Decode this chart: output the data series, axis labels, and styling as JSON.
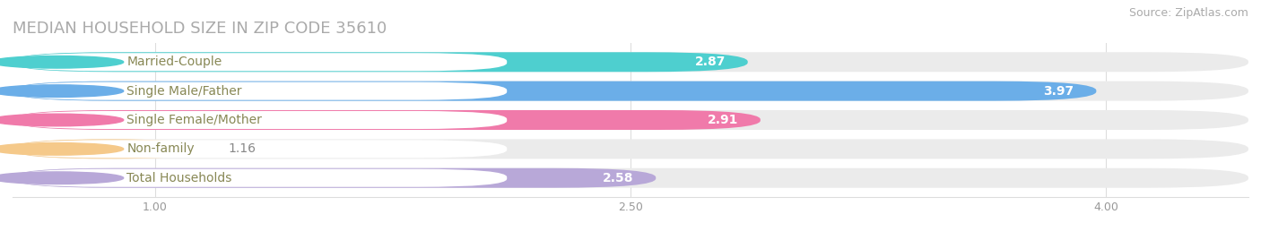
{
  "title": "MEDIAN HOUSEHOLD SIZE IN ZIP CODE 35610",
  "source": "Source: ZipAtlas.com",
  "categories": [
    "Married-Couple",
    "Single Male/Father",
    "Single Female/Mother",
    "Non-family",
    "Total Households"
  ],
  "values": [
    2.87,
    3.97,
    2.91,
    1.16,
    2.58
  ],
  "bar_colors": [
    "#4ecfcf",
    "#6baee8",
    "#f07aaa",
    "#f5c98a",
    "#b8a8d8"
  ],
  "dot_colors": [
    "#4ecfcf",
    "#6baee8",
    "#f07aaa",
    "#f5c98a",
    "#b8a8d8"
  ],
  "bar_bg_color": "#ebebeb",
  "label_text_color": "#888855",
  "xlim_left": 0.55,
  "xlim_right": 4.45,
  "xticks": [
    1.0,
    2.5,
    4.0
  ],
  "xtick_labels": [
    "1.00",
    "2.50",
    "4.00"
  ],
  "title_fontsize": 13,
  "source_fontsize": 9,
  "bar_label_fontsize": 10,
  "value_fontsize": 10,
  "background_color": "#ffffff"
}
